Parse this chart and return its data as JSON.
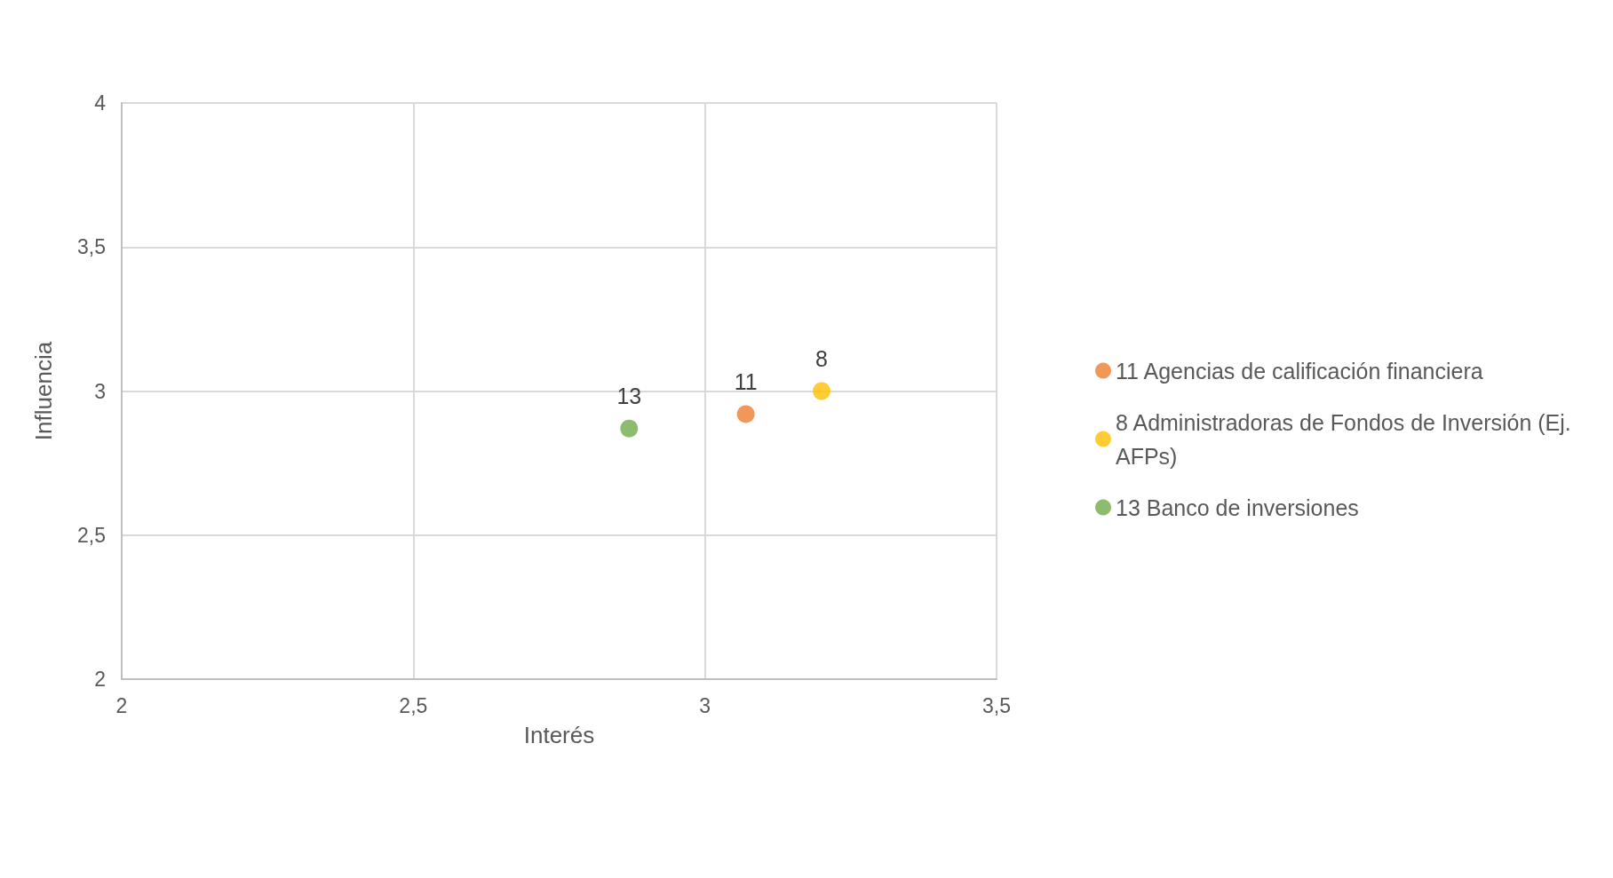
{
  "chart_data": {
    "type": "scatter",
    "xlabel": "Interés",
    "ylabel": "Influencia",
    "xlim": [
      2,
      3.5
    ],
    "xticks": [
      2,
      {
        "value": 2.5,
        "label": "2,5"
      },
      3,
      {
        "value": 3.5,
        "label": "3,5"
      }
    ],
    "ylim": [
      2,
      4
    ],
    "yticks": [
      2,
      {
        "value": 2.5,
        "label": "2,5"
      },
      3,
      {
        "value": 3.5,
        "label": "3,5"
      },
      4
    ],
    "annotations": [
      {
        "text": "11",
        "x": 3.07,
        "y": 2.92
      },
      {
        "text": "8",
        "x": 3.2,
        "y": 3.0
      },
      {
        "text": "13",
        "x": 2.87,
        "y": 2.87
      }
    ],
    "grid": true,
    "legend": "right",
    "marker": "circle",
    "series": [
      {
        "name": "11 Agencias de calificación financiera",
        "color": "#ed7d31",
        "x": [
          3.07
        ],
        "values": [
          2.92
        ]
      },
      {
        "name": "8 Administradoras de Fondos de Inversión (Ej. AFPs)",
        "color": "#ffc000",
        "x": [
          3.2
        ],
        "values": [
          3.0
        ]
      },
      {
        "name": "13 Banco de inversiones",
        "color": "#70ad47",
        "x": [
          2.87
        ],
        "values": [
          2.87
        ]
      }
    ]
  }
}
